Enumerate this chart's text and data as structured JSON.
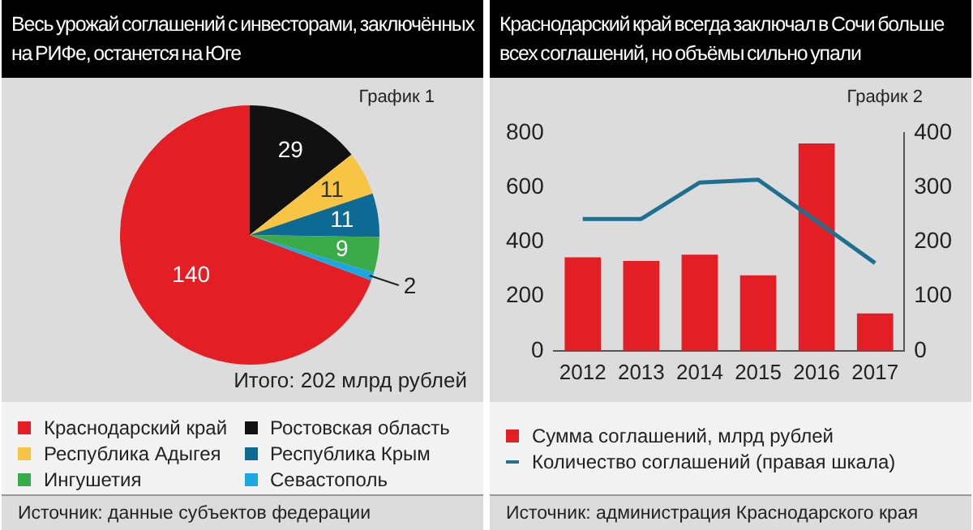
{
  "chart_data": [
    {
      "type": "pie",
      "title": "Весь урожай соглашений с инвесторами, заключённых на РИФе, останется на Юге",
      "categories": [
        "Краснодарский край",
        "Ростовская область",
        "Республика Адыгея",
        "Республика Крым",
        "Ингушетия",
        "Севастополь"
      ],
      "values": [
        140,
        29,
        11,
        11,
        9,
        2
      ],
      "colors": [
        "#e31e24",
        "#111111",
        "#f8c443",
        "#0d6a94",
        "#3aab48",
        "#1ba8e2"
      ],
      "data_labels": true,
      "legend": "bottom",
      "annotations": [
        "График 1",
        "Итого: 202 млрд рублей",
        "Источник: данные субъектов федерации"
      ]
    },
    {
      "type": "bar",
      "title": "Краснодарский край всегда заключал в Сочи больше всех соглашений, но объёмы сильно упали",
      "categories": [
        "2012",
        "2013",
        "2014",
        "2015",
        "2016",
        "2017"
      ],
      "series": [
        {
          "name": "Сумма соглашений, млрд рублей",
          "type": "bar",
          "color": "#e31e24",
          "values": [
            343,
            330,
            353,
            277,
            761,
            137
          ]
        },
        {
          "name": "Количество соглашений (правая шкала)",
          "type": "line",
          "axis": "y2",
          "color": "#1f6f91",
          "values": [
            242,
            242,
            309,
            314,
            238,
            161
          ]
        }
      ],
      "ylim": [
        0,
        800
      ],
      "yticks": [
        0,
        200,
        400,
        600,
        800
      ],
      "y2lim": [
        0,
        400
      ],
      "y2ticks": [
        0,
        100,
        200,
        300,
        400
      ],
      "grid": false,
      "marker": "none",
      "line_style": "solid",
      "legend": "bottom",
      "annotations": [
        "График 2",
        "Источник: администрация Краснодарского края"
      ]
    }
  ]
}
